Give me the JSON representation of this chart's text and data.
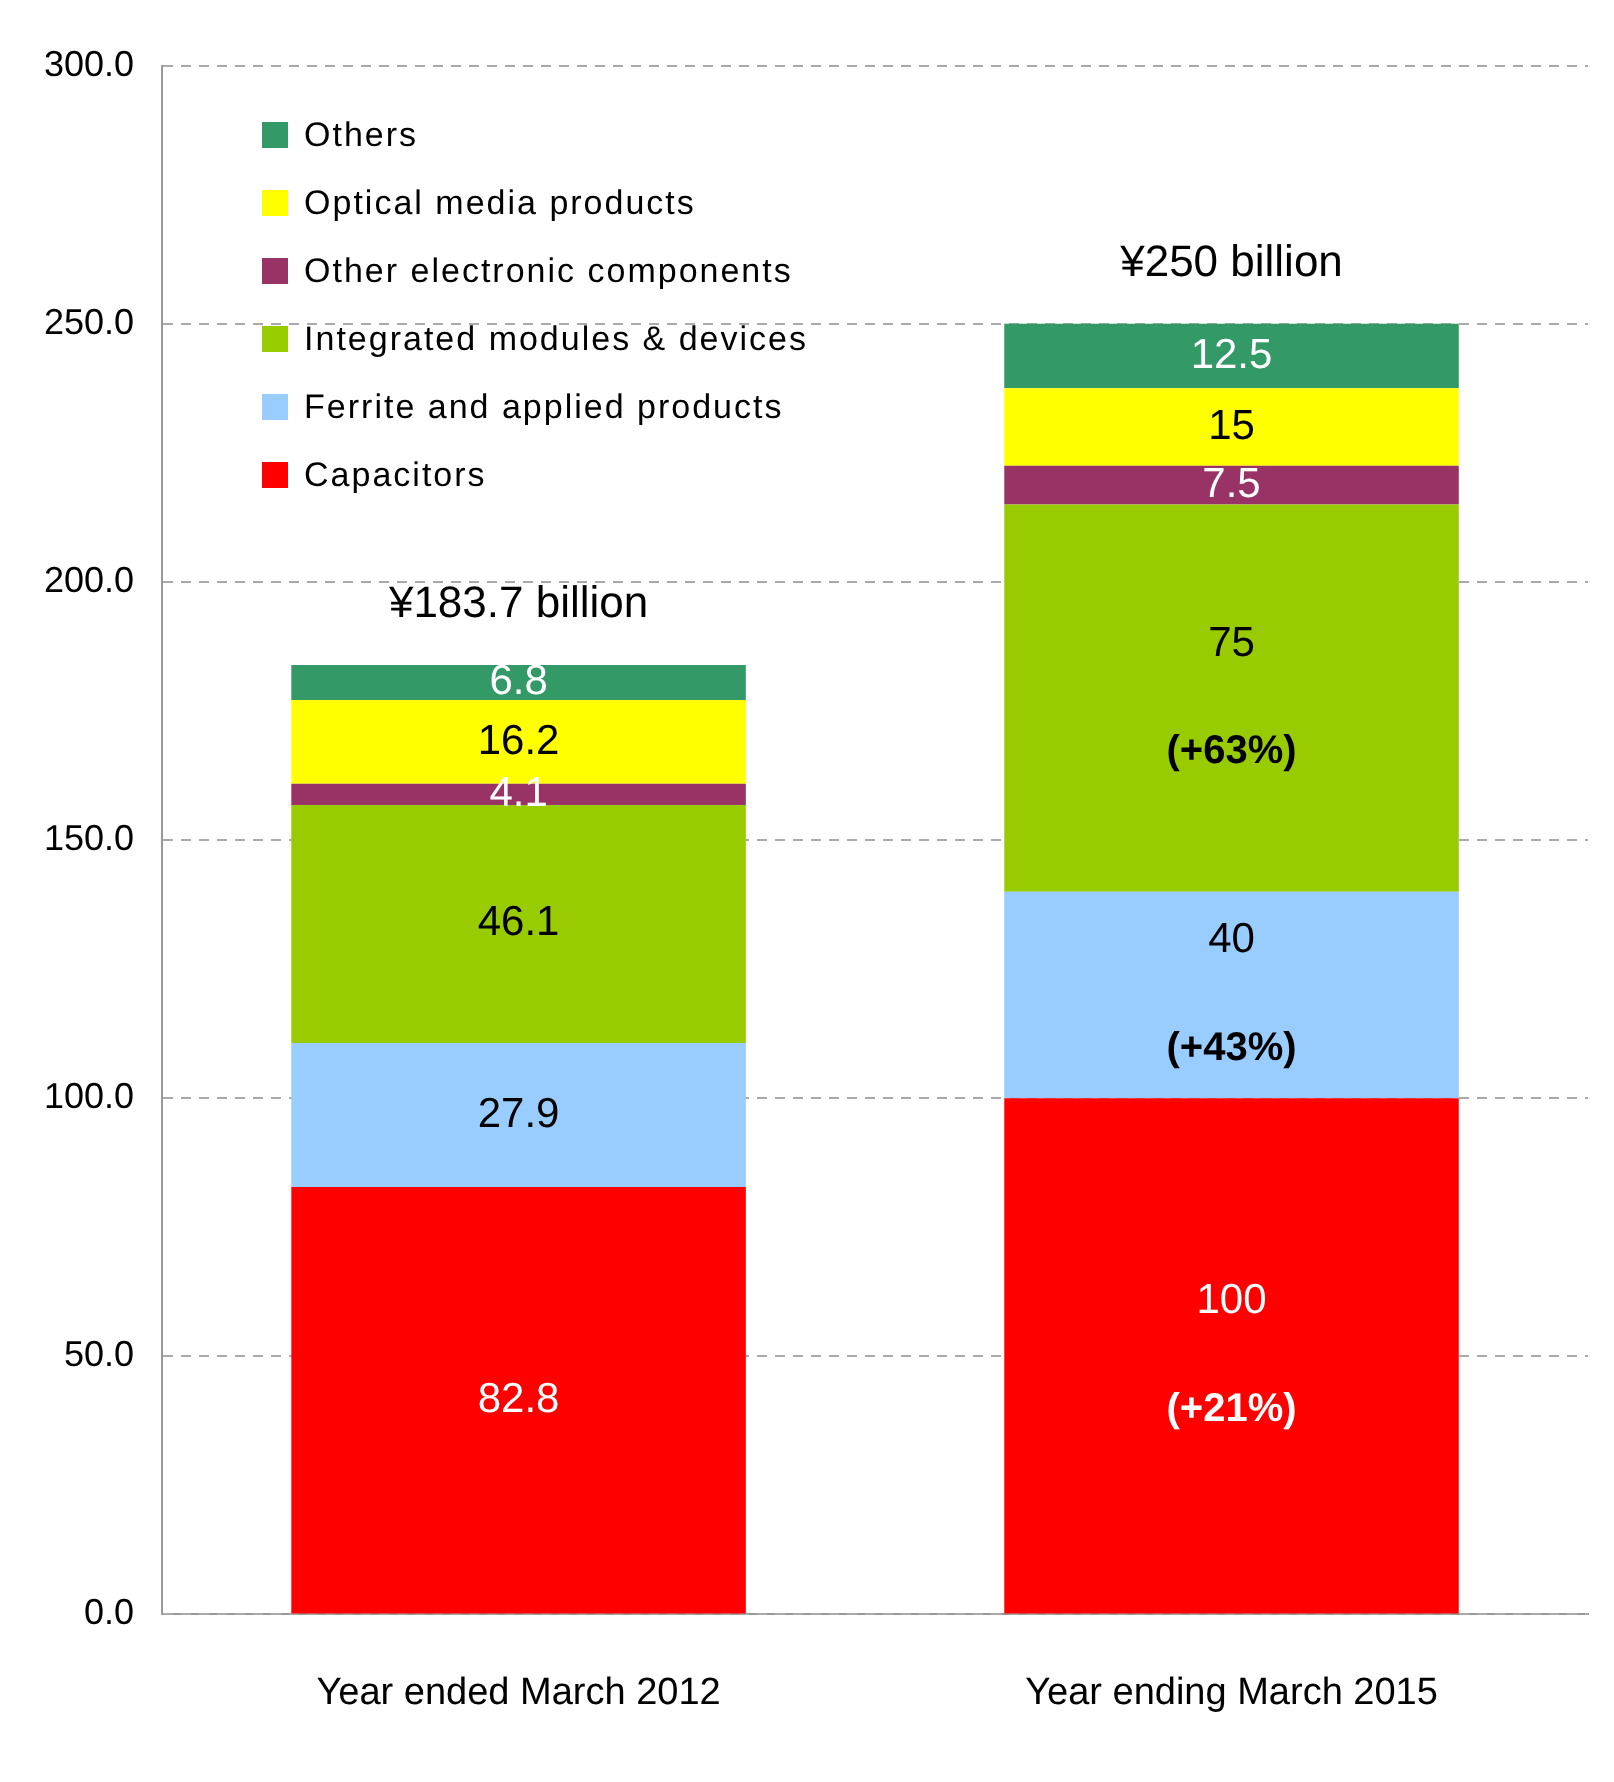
{
  "chart_data": {
    "type": "bar",
    "stacked": true,
    "categories": [
      "Year ended March 2012",
      "Year ending March 2015"
    ],
    "series": [
      {
        "name": "Capacitors",
        "color": "#ff0000",
        "values": [
          82.8,
          100
        ],
        "value_labels": [
          "82.8",
          "100\n(+21%)"
        ]
      },
      {
        "name": "Ferrite and applied products",
        "color": "#99ccff",
        "values": [
          27.9,
          40
        ],
        "value_labels": [
          "27.9",
          "40\n(+43%)"
        ]
      },
      {
        "name": "Integrated modules & devices",
        "color": "#99cc00",
        "values": [
          46.1,
          75
        ],
        "value_labels": [
          "46.1",
          "75\n(+63%)"
        ]
      },
      {
        "name": "Other electronic components",
        "color": "#993366",
        "values": [
          4.1,
          7.5
        ],
        "value_labels": [
          "4.1",
          "7.5"
        ]
      },
      {
        "name": "Optical media products",
        "color": "#ffff00",
        "values": [
          16.2,
          15
        ],
        "value_labels": [
          "16.2",
          "15"
        ]
      },
      {
        "name": "Others",
        "color": "#339966",
        "values": [
          6.8,
          12.5
        ],
        "value_labels": [
          "6.8",
          "12.5"
        ]
      }
    ],
    "totals": [
      "¥183.7 billion",
      "¥250 billion"
    ],
    "ylim": [
      0,
      300
    ],
    "yticks": [
      {
        "value": 0,
        "label": "0.0"
      },
      {
        "value": 50,
        "label": "50.0"
      },
      {
        "value": 100,
        "label": "100.0"
      },
      {
        "value": 150,
        "label": "150.0"
      },
      {
        "value": 200,
        "label": "200.0"
      },
      {
        "value": 250,
        "label": "250.0"
      },
      {
        "value": 300,
        "label": "300.0"
      }
    ],
    "grid": "y",
    "legend": "top left"
  }
}
